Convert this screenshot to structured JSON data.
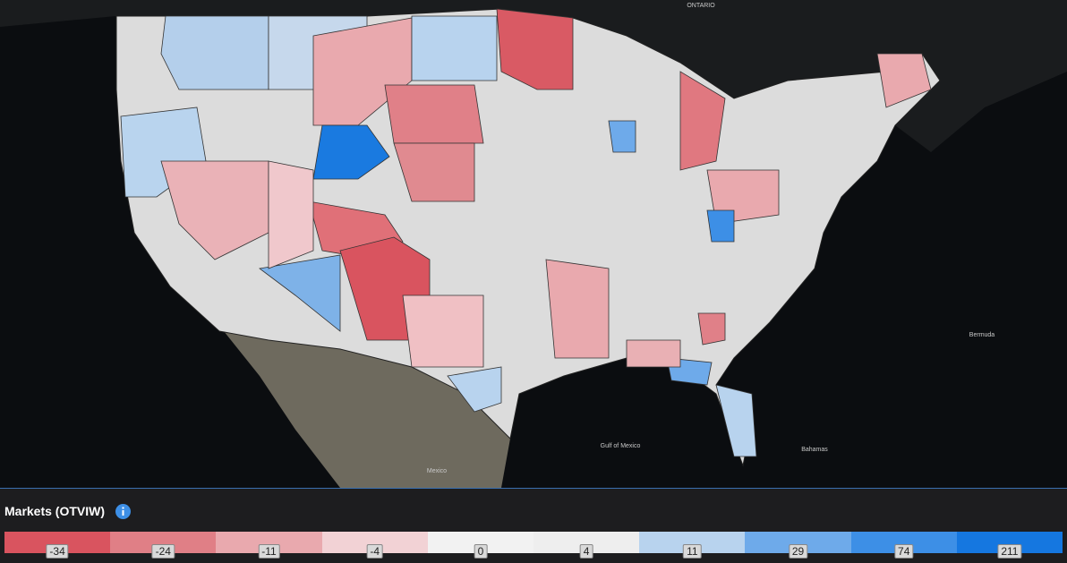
{
  "map": {
    "labels": [
      "ONTARIO",
      "Gulf of Mexico",
      "Bermuda",
      "Bahamas",
      "Mexico"
    ]
  },
  "legend": {
    "title": "Markets (OTVIW)",
    "items": [
      {
        "label": -34,
        "color": "#d9545f"
      },
      {
        "label": -24,
        "color": "#e07f86"
      },
      {
        "label": -11,
        "color": "#e9a9ae"
      },
      {
        "label": -4,
        "color": "#f2d2d5"
      },
      {
        "label": 0,
        "color": "#f2f2f2"
      },
      {
        "label": 4,
        "color": "#eeeeee"
      },
      {
        "label": 11,
        "color": "#b8d3ee"
      },
      {
        "label": 29,
        "color": "#6eaaea"
      },
      {
        "label": 74,
        "color": "#3d8fe6"
      },
      {
        "label": 211,
        "color": "#1577e0"
      }
    ]
  }
}
